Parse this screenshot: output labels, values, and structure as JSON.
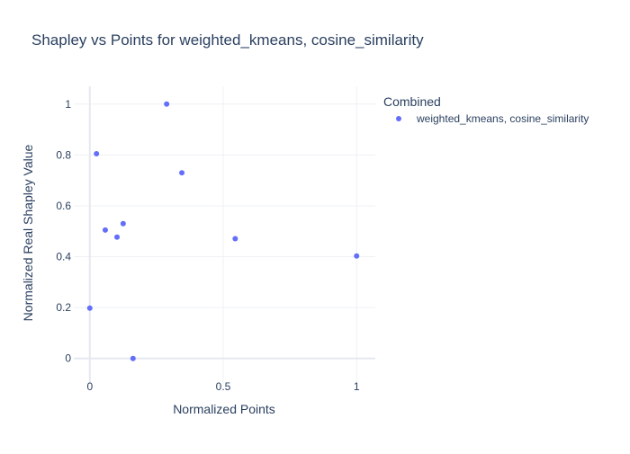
{
  "chart_data": {
    "type": "scatter",
    "title": "Shapley vs Points for weighted_kmeans, cosine_similarity",
    "xlabel": "Normalized Points",
    "ylabel": "Normalized Real Shapley Value",
    "xlim": [
      -0.06,
      1.07
    ],
    "ylim": [
      -0.1,
      1.07
    ],
    "xticks": [
      0,
      0.5,
      1
    ],
    "xtick_labels": [
      "0",
      "0.5",
      "1"
    ],
    "yticks": [
      0,
      0.2,
      0.4,
      0.6,
      0.8,
      1
    ],
    "ytick_labels": [
      "0",
      "0.2",
      "0.4",
      "0.6",
      "0.8",
      "1"
    ],
    "grid": true,
    "legend_position": "top-right",
    "legend_title": "Combined",
    "series": [
      {
        "name": "weighted_kmeans, cosine_similarity",
        "color": "#636efa",
        "points": [
          {
            "x": 0.0,
            "y": 0.198
          },
          {
            "x": 0.025,
            "y": 0.805
          },
          {
            "x": 0.058,
            "y": 0.505
          },
          {
            "x": 0.102,
            "y": 0.477
          },
          {
            "x": 0.125,
            "y": 0.53
          },
          {
            "x": 0.162,
            "y": 0.0
          },
          {
            "x": 0.288,
            "y": 1.0
          },
          {
            "x": 0.345,
            "y": 0.73
          },
          {
            "x": 0.545,
            "y": 0.471
          },
          {
            "x": 1.0,
            "y": 0.403
          }
        ]
      }
    ]
  }
}
